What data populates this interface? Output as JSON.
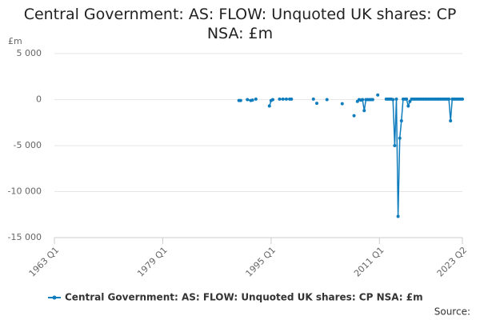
{
  "chart_data": {
    "type": "line",
    "title": "Central Government: AS: FLOW: Unquoted UK shares: CP NSA: £m",
    "y_label": "£m",
    "source": "Source:",
    "series": [
      {
        "name": "Central Government: AS: FLOW: Unquoted UK shares: CP NSA: £m",
        "color": "#0f7dbd",
        "x": [
          "1990 Q2",
          "1990 Q3",
          "1991 Q1",
          "1991 Q3",
          "1992 Q1",
          "1992 Q2",
          "1992 Q3",
          "1992 Q4",
          "1993 Q1",
          "1994 Q4",
          "1995 Q1",
          "1995 Q2",
          "1995 Q3",
          "1996 Q2",
          "1996 Q4",
          "1997 Q2",
          "1997 Q4",
          "1998 Q1",
          "1998 Q2",
          "2001 Q2",
          "2001 Q3",
          "2001 Q4",
          "2002 Q1",
          "2003 Q2",
          "2003 Q3",
          "2005 Q3",
          "2005 Q4",
          "2007 Q2",
          "2007 Q3",
          "2007 Q4",
          "2008 Q1",
          "2008 Q2",
          "2008 Q3",
          "2008 Q4",
          "2009 Q1",
          "2009 Q2",
          "2009 Q3",
          "2009 Q4",
          "2010 Q1",
          "2010 Q2",
          "2010 Q4",
          "2011 Q1",
          "2012 Q1",
          "2012 Q2",
          "2012 Q3",
          "2012 Q4",
          "2013 Q1",
          "2013 Q2",
          "2013 Q3",
          "2013 Q4",
          "2014 Q1",
          "2014 Q2",
          "2014 Q3",
          "2014 Q4",
          "2015 Q1",
          "2015 Q2",
          "2015 Q3",
          "2015 Q4",
          "2016 Q1",
          "2016 Q2",
          "2016 Q3",
          "2016 Q4",
          "2017 Q1",
          "2017 Q2",
          "2017 Q3",
          "2017 Q4",
          "2018 Q1",
          "2018 Q2",
          "2018 Q3",
          "2018 Q4",
          "2019 Q1",
          "2019 Q2",
          "2019 Q3",
          "2019 Q4",
          "2020 Q1",
          "2020 Q2",
          "2020 Q3",
          "2020 Q4",
          "2021 Q1",
          "2021 Q2",
          "2021 Q3",
          "2021 Q4",
          "2022 Q1",
          "2022 Q2",
          "2022 Q3",
          "2022 Q4",
          "2023 Q1",
          "2023 Q2"
        ],
        "values": [
          -100,
          -100,
          null,
          0,
          -100,
          -50,
          null,
          50,
          null,
          -700,
          -100,
          0,
          null,
          50,
          50,
          50,
          50,
          50,
          null,
          50,
          null,
          -400,
          null,
          0,
          null,
          -450,
          null,
          -1750,
          null,
          -200,
          0,
          -50,
          0,
          -1200,
          0,
          0,
          0,
          0,
          0,
          null,
          500,
          null,
          50,
          50,
          50,
          50,
          0,
          -5000,
          50,
          -12700,
          -4200,
          -2300,
          50,
          50,
          50,
          -700,
          -200,
          50,
          50,
          50,
          50,
          50,
          50,
          50,
          50,
          50,
          50,
          50,
          50,
          50,
          50,
          50,
          50,
          50,
          50,
          50,
          50,
          50,
          50,
          50,
          -2300,
          50,
          50,
          50,
          50,
          50,
          50,
          50
        ]
      }
    ],
    "xlim": [
      "1963 Q1",
      "2023 Q2"
    ],
    "xticks": [
      "1963 Q1",
      "1979 Q1",
      "1995 Q1",
      "2011 Q1",
      "2023 Q2"
    ],
    "ylim": [
      -15000,
      5000
    ],
    "yticks": [
      {
        "value": -15000,
        "label": "-15 000"
      },
      {
        "value": -10000,
        "label": "-10 000"
      },
      {
        "value": -5000,
        "label": "-5 000"
      },
      0,
      {
        "value": 5000,
        "label": "5 000"
      }
    ],
    "grid": true,
    "legend": "bottom"
  }
}
